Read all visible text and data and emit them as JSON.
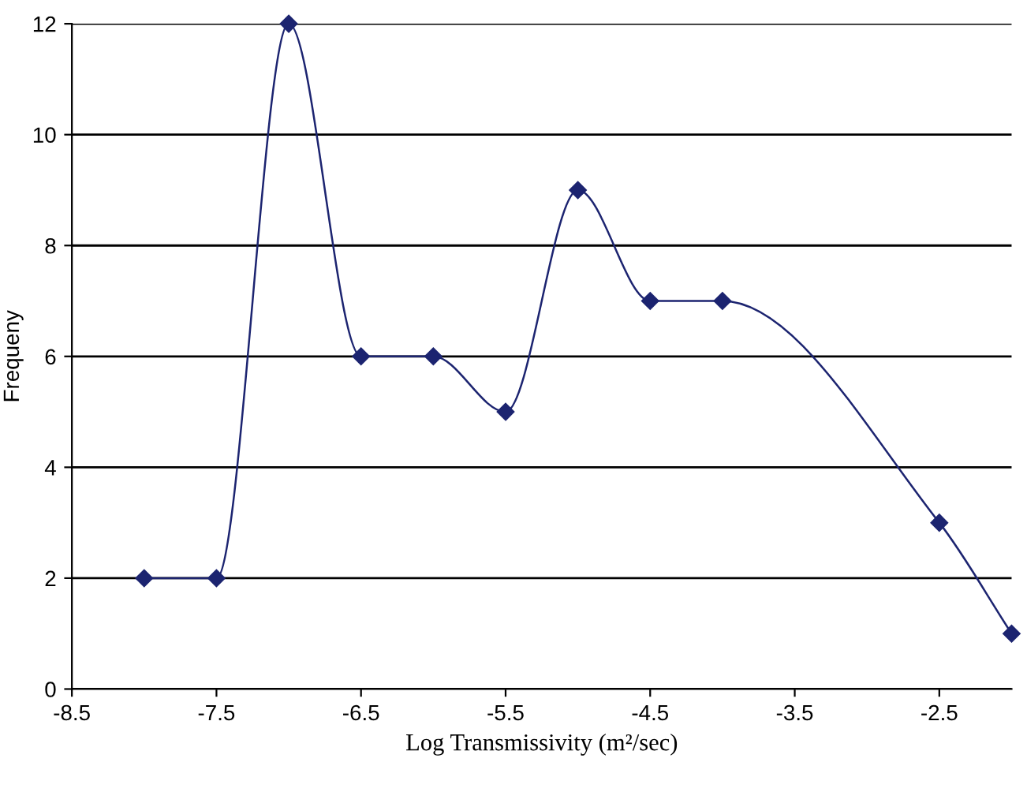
{
  "chart_data": {
    "type": "line",
    "xlabel": "Log Transmissivity (m²/sec)",
    "ylabel": "Frequeny",
    "series": [
      {
        "color": "#1c2470",
        "x": [
          -8,
          -7.5,
          -7,
          -6.5,
          -6,
          -5.5,
          -5,
          -4.5,
          -4,
          -2.5,
          -2
        ],
        "values": [
          2,
          2,
          12,
          6,
          6,
          5,
          9,
          7,
          7,
          3,
          1
        ]
      }
    ],
    "xlim": [
      -8.5,
      -2
    ],
    "xticks": [
      -8.5,
      -7.5,
      -6.5,
      -5.5,
      -4.5,
      -3.5,
      -2.5
    ],
    "ylim": [
      0,
      12
    ],
    "yticks": [
      0,
      2,
      4,
      6,
      8,
      10,
      12
    ],
    "grid": "y",
    "marker": "diamond",
    "line_style": "solid",
    "legend": false
  }
}
